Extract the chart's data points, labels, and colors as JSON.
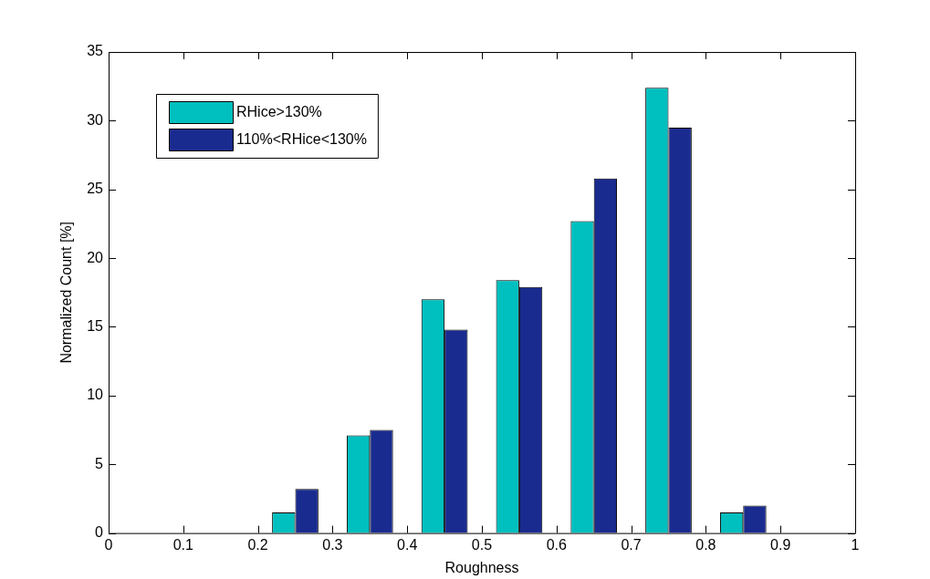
{
  "chart_data": {
    "type": "bar",
    "xlabel": "Roughness",
    "ylabel": "Normalized Count [%]",
    "x": [
      0.25,
      0.35,
      0.45,
      0.55,
      0.65,
      0.75,
      0.85
    ],
    "series": [
      {
        "name": "RHice>130%",
        "color": "#00bfbf",
        "values": [
          1.5,
          7.1,
          17.0,
          18.4,
          22.7,
          32.4,
          1.5
        ]
      },
      {
        "name": "110%<RHice<130%",
        "color": "#1a2b8f",
        "values": [
          3.2,
          7.5,
          14.8,
          17.9,
          25.8,
          29.5,
          2.0
        ]
      }
    ],
    "xlim": [
      0,
      1
    ],
    "xticks": [
      0,
      0.1,
      0.2,
      0.3,
      0.4,
      0.5,
      0.6,
      0.7,
      0.8,
      0.9,
      1
    ],
    "ylim": [
      0,
      35
    ],
    "yticks": [
      0,
      5,
      10,
      15,
      20,
      25,
      30,
      35
    ],
    "grid": false,
    "legend": "top left"
  }
}
